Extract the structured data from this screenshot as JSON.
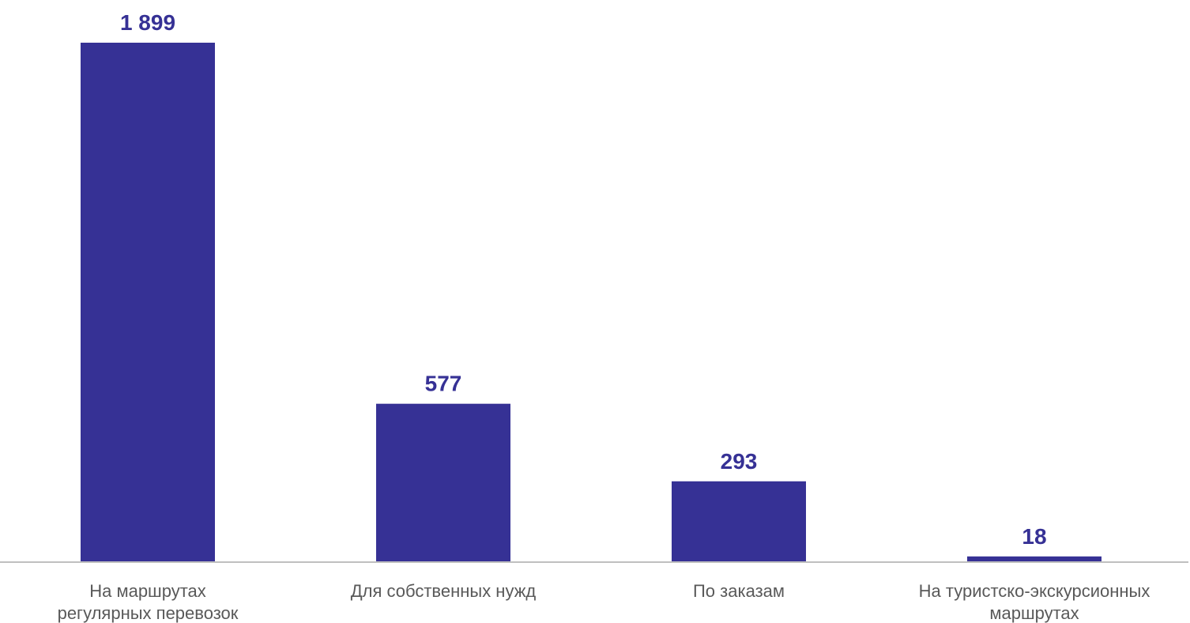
{
  "chart_data": {
    "type": "bar",
    "title": "",
    "xlabel": "",
    "ylabel": "",
    "categories": [
      [
        "На маршрутах",
        "регулярных перевозок"
      ],
      [
        "Для собственных нужд"
      ],
      [
        "По заказам"
      ],
      [
        "На туристско-экскурсионных",
        "маршрутах"
      ]
    ],
    "values": [
      1899,
      577,
      293,
      18
    ],
    "value_labels": [
      "1 899",
      "577",
      "293",
      "18"
    ],
    "ylim": [
      0,
      1899
    ],
    "grid": false,
    "legend": "none",
    "colors": {
      "bar": "#363195",
      "value_label": "#363195",
      "category_label": "#595959",
      "axis": "#bfbfbf"
    }
  }
}
